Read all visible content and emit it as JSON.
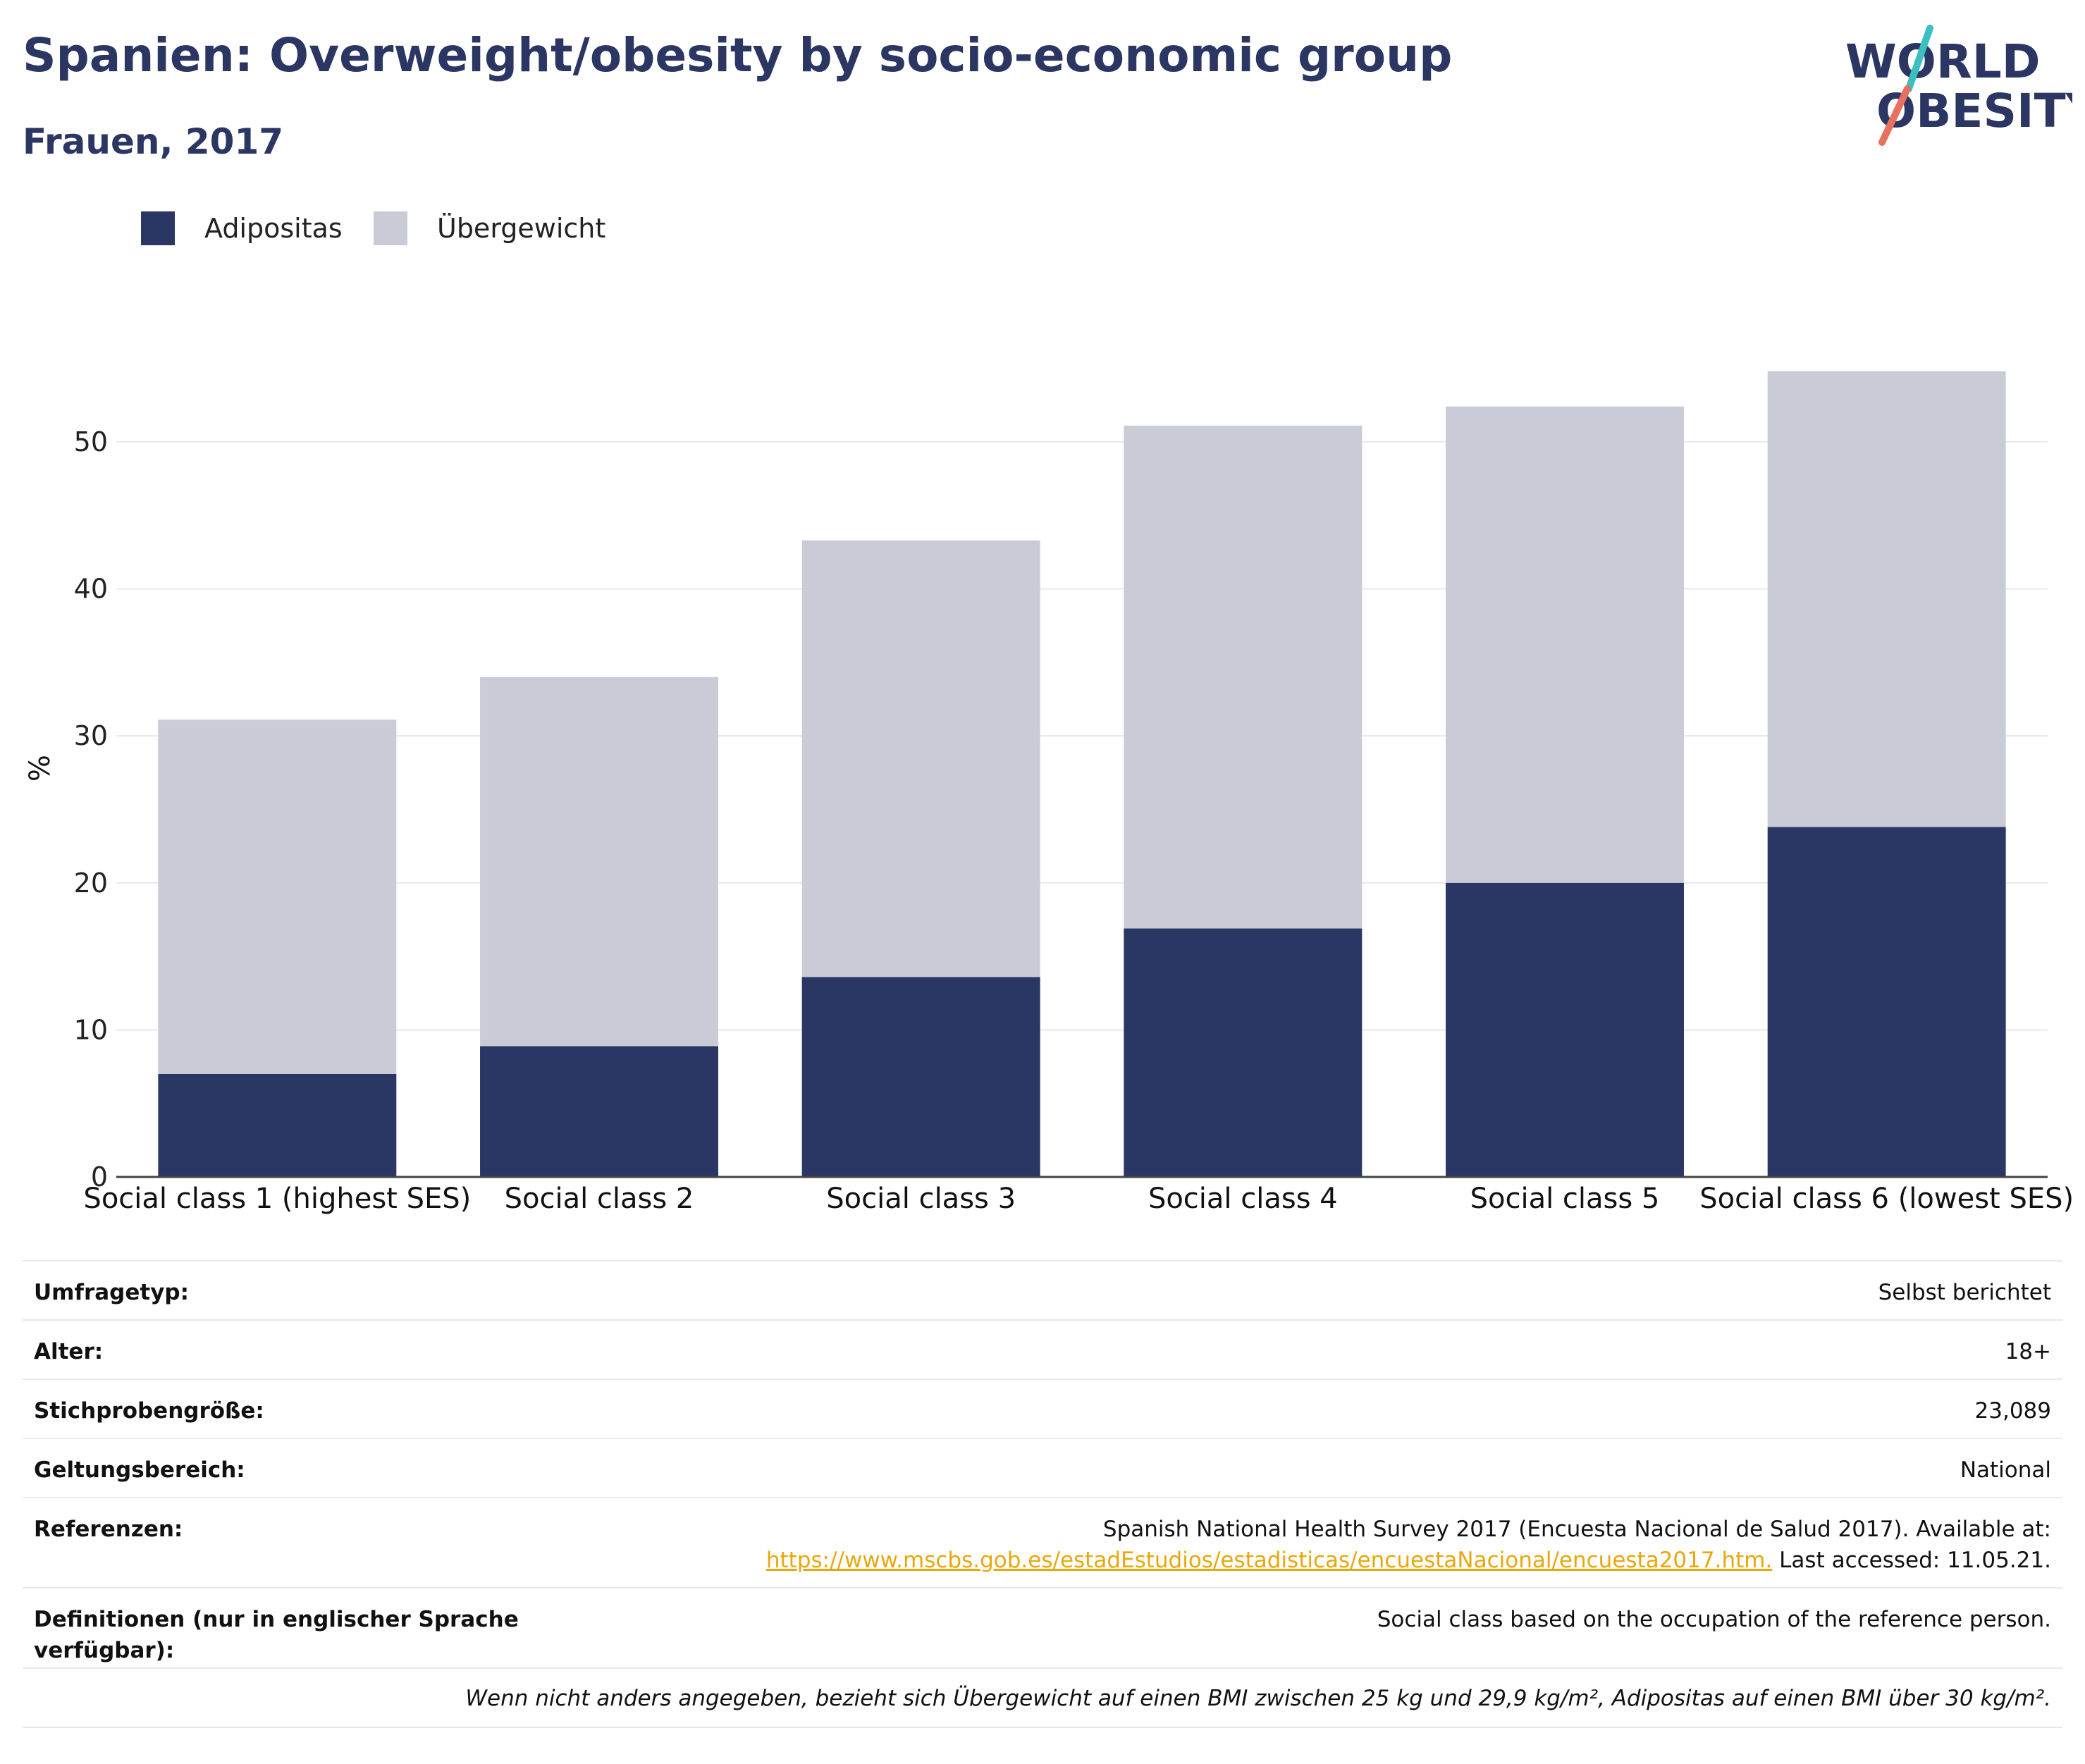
{
  "header": {
    "title": "Spanien: Overweight/obesity by socio-economic group",
    "subtitle": "Frauen, 2017"
  },
  "logo": {
    "line1": "WORLD",
    "line2": "OBESITY"
  },
  "legend": [
    {
      "label": "Adipositas",
      "color": "#2a3663"
    },
    {
      "label": "Übergewicht",
      "color": "#c9cbd6"
    }
  ],
  "chart_data": {
    "type": "bar",
    "stacked": true,
    "title": "Spanien: Overweight/obesity by socio-economic group",
    "subtitle": "Frauen, 2017",
    "xlabel": "",
    "ylabel": "%",
    "ylim": [
      0,
      58
    ],
    "yticks": [
      0,
      10,
      20,
      30,
      40,
      50
    ],
    "grid": true,
    "legend_position": "top-left",
    "categories": [
      "Social class 1 (highest SES)",
      "Social class 2",
      "Social class 3",
      "Social class 4",
      "Social class 5",
      "Social class 6 (lowest SES)"
    ],
    "series": [
      {
        "name": "Adipositas",
        "color": "#2a3663",
        "values": [
          7.0,
          8.9,
          13.6,
          16.9,
          20.0,
          23.8
        ]
      },
      {
        "name": "Übergewicht",
        "color": "#c9cbd6",
        "values": [
          24.1,
          25.1,
          29.7,
          34.2,
          32.4,
          31.0
        ]
      }
    ]
  },
  "table": {
    "rows": [
      {
        "key": "Umfragetyp:",
        "value": "Selbst berichtet"
      },
      {
        "key": "Alter:",
        "value": "18+"
      },
      {
        "key": "Stichprobengröße:",
        "value": "23,089"
      },
      {
        "key": "Geltungsbereich:",
        "value": "National"
      }
    ],
    "references": {
      "key": "Referenzen:",
      "text_before": "Spanish National Health Survey 2017 (Encuesta Nacional de Salud 2017). Available at:",
      "link": "https://www.mscbs.gob.es/estadEstudios/estadisticas/encuestaNacional/encuesta2017.htm.",
      "text_after": " Last accessed: 11.05.21."
    },
    "definitions": {
      "key": "Definitionen (nur in englischer Sprache verfügbar):",
      "value": "Social class based on the occupation of the reference person."
    },
    "footnote": "Wenn nicht anders angegeben, bezieht sich Übergewicht auf einen BMI zwischen 25 kg und 29,9 kg/m², Adipositas auf einen BMI über 30 kg/m²."
  }
}
